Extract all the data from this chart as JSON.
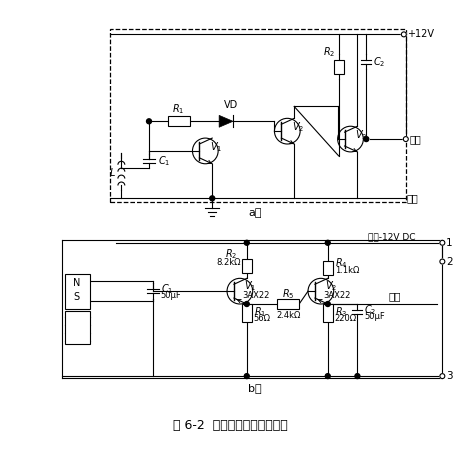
{
  "title": "图 6-2  前置放大器电气原理图",
  "bg_color": "#ffffff",
  "line_color": "#000000",
  "font_size": 9,
  "diagram_a_label": "a）",
  "diagram_b_label": "b）"
}
